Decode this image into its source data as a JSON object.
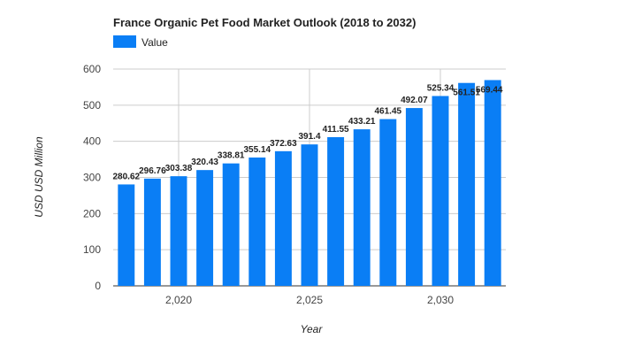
{
  "chart_data": {
    "type": "bar",
    "title": "France Organic Pet Food Market Outlook (2018 to 2032)",
    "legend": {
      "position": "top-left",
      "entries": [
        "Value"
      ]
    },
    "series": [
      {
        "name": "Value",
        "color": "#0a7ef5",
        "x": [
          2018,
          2019,
          2020,
          2021,
          2022,
          2023,
          2024,
          2025,
          2026,
          2027,
          2028,
          2029,
          2030,
          2031,
          2032
        ],
        "values": [
          280.62,
          296.76,
          303.38,
          320.43,
          338.81,
          355.14,
          372.63,
          391.4,
          411.55,
          433.21,
          461.45,
          492.07,
          525.34,
          561.51,
          569.44
        ],
        "labels": [
          "280.62",
          "296.76",
          "303.38",
          "320.43",
          "338.81",
          "355.14",
          "372.63",
          "391.4",
          "411.55",
          "433.21",
          "461.45",
          "492.07",
          "525.34",
          "561.51",
          "569.44"
        ]
      }
    ],
    "xlabel": "Year",
    "ylabel": "USD USD Million",
    "xticks": [
      2020,
      2025,
      2030
    ],
    "xtick_labels": [
      "2,020",
      "2,025",
      "2,030"
    ],
    "yticks": [
      0,
      100,
      200,
      300,
      400,
      500,
      600
    ],
    "ylim": [
      0,
      600
    ],
    "grid": true
  }
}
